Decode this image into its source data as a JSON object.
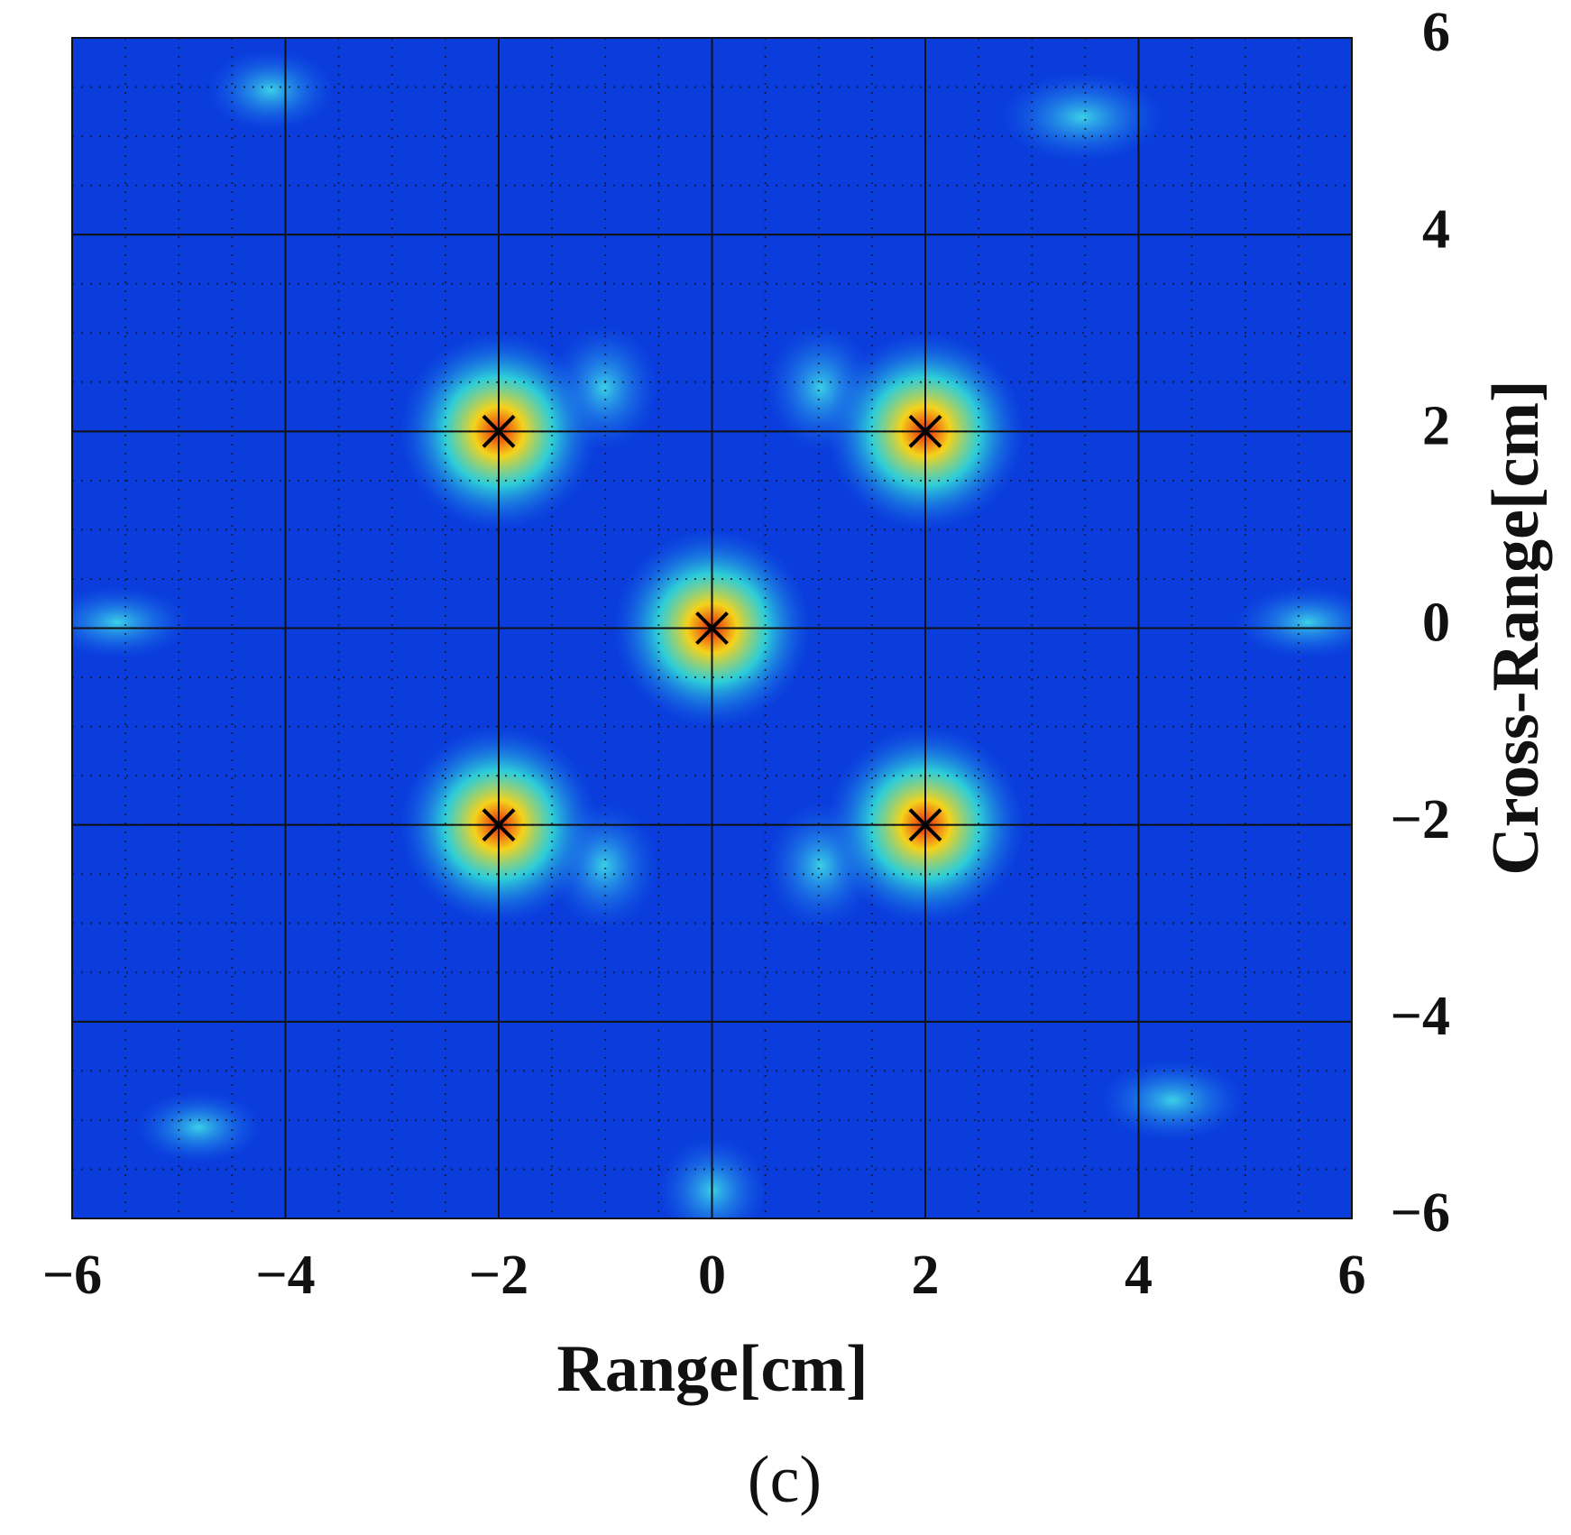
{
  "chart_data": {
    "type": "scatter",
    "x": [
      -2,
      2,
      0,
      -2,
      2
    ],
    "y": [
      2,
      2,
      0,
      -2,
      -2
    ],
    "marker": "x",
    "color": "#000000",
    "xlabel": "Range[cm]",
    "ylabel": "Cross-Range[cm]",
    "caption": "(c)",
    "xlim": [
      -6,
      6
    ],
    "ylim": [
      -6,
      6
    ],
    "xticks": [
      {
        "value": -6,
        "label": "−6"
      },
      {
        "value": -4,
        "label": "−4"
      },
      {
        "value": -2,
        "label": "−2"
      },
      0,
      2,
      4,
      6
    ],
    "yticks": [
      {
        "value": -6,
        "label": "−6"
      },
      {
        "value": -4,
        "label": "−4"
      },
      {
        "value": -2,
        "label": "−2"
      },
      0,
      2,
      4,
      6
    ],
    "grid": true,
    "minor_grid": true,
    "yaxis_side": "right"
  }
}
